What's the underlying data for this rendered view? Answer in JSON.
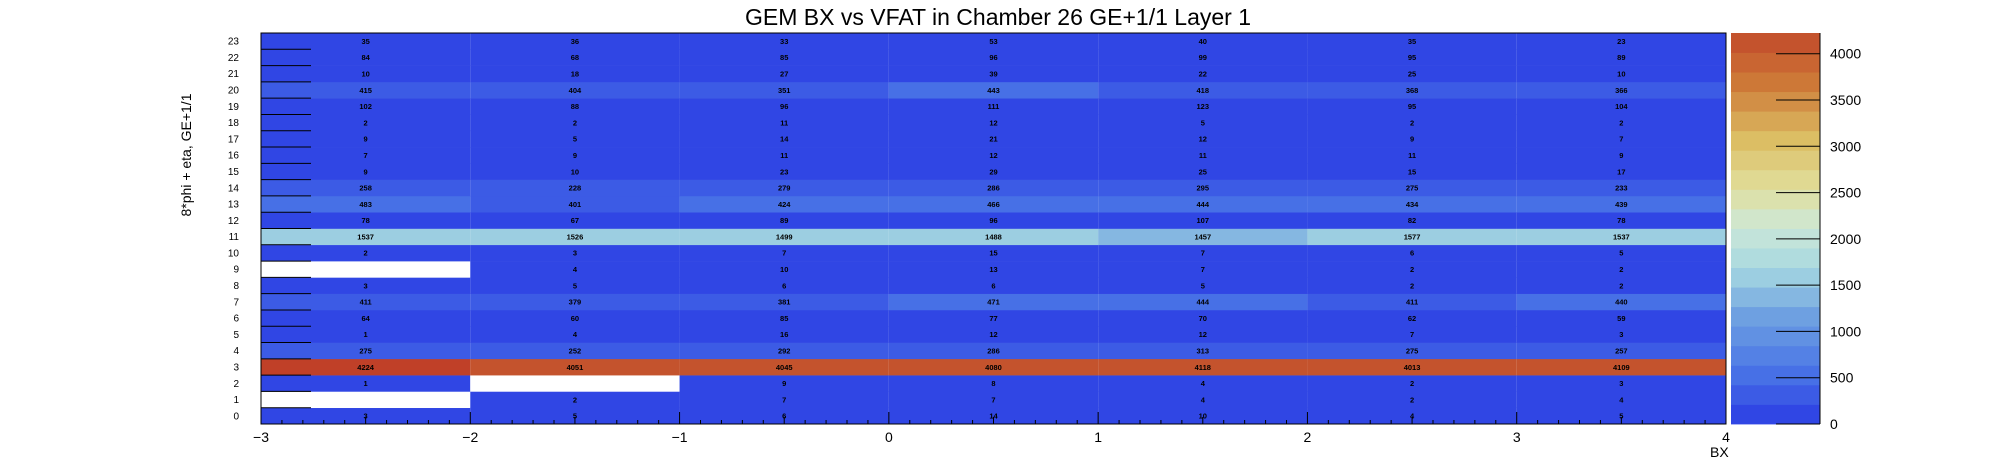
{
  "title": "GEM BX vs VFAT in Chamber 26 GE+1/1 Layer 1",
  "chart_data": {
    "type": "heatmap",
    "title": "GEM BX vs VFAT in Chamber 26 GE+1/1 Layer 1",
    "xlabel": "BX",
    "ylabel": "8*phi + eta, GE+1/1",
    "xlim": [
      -3,
      4
    ],
    "x_ticks": [
      "−3",
      "−2",
      "−1",
      "0",
      "1",
      "2",
      "3",
      "4"
    ],
    "x_bins": [
      -2.5,
      -1.5,
      -0.5,
      0.5,
      1.5,
      2.5,
      3.5
    ],
    "y_bins": [
      0,
      1,
      2,
      3,
      4,
      5,
      6,
      7,
      8,
      9,
      10,
      11,
      12,
      13,
      14,
      15,
      16,
      17,
      18,
      19,
      20,
      21,
      22,
      23
    ],
    "z_range": [
      0,
      4224
    ],
    "z_ticks": [
      "0",
      "500",
      "1000",
      "1500",
      "2000",
      "2500",
      "3000",
      "3500",
      "4000"
    ],
    "grid": false,
    "colorbar": "right",
    "values": [
      [
        3,
        5,
        6,
        14,
        10,
        4,
        5
      ],
      [
        null,
        2,
        7,
        7,
        4,
        2,
        4
      ],
      [
        1,
        null,
        9,
        8,
        4,
        2,
        3
      ],
      [
        4224,
        4051,
        4045,
        4080,
        4118,
        4013,
        4109
      ],
      [
        275,
        252,
        292,
        286,
        313,
        275,
        257
      ],
      [
        1,
        4,
        16,
        12,
        12,
        7,
        3
      ],
      [
        64,
        60,
        85,
        77,
        70,
        62,
        59
      ],
      [
        411,
        379,
        381,
        471,
        444,
        411,
        440
      ],
      [
        3,
        5,
        6,
        6,
        5,
        2,
        2
      ],
      [
        null,
        4,
        10,
        13,
        7,
        2,
        2
      ],
      [
        2,
        3,
        7,
        15,
        7,
        6,
        5
      ],
      [
        1537,
        1526,
        1499,
        1488,
        1457,
        1577,
        1537
      ],
      [
        78,
        67,
        89,
        96,
        107,
        82,
        78
      ],
      [
        483,
        401,
        424,
        466,
        444,
        434,
        439
      ],
      [
        258,
        228,
        279,
        286,
        295,
        275,
        233
      ],
      [
        9,
        10,
        23,
        29,
        25,
        15,
        17
      ],
      [
        7,
        9,
        11,
        12,
        11,
        11,
        9
      ],
      [
        9,
        5,
        14,
        21,
        12,
        9,
        7
      ],
      [
        2,
        2,
        11,
        12,
        5,
        2,
        2
      ],
      [
        102,
        88,
        96,
        111,
        123,
        95,
        104
      ],
      [
        415,
        404,
        351,
        443,
        418,
        368,
        366
      ],
      [
        10,
        18,
        27,
        39,
        22,
        25,
        10
      ],
      [
        84,
        68,
        85,
        96,
        99,
        95,
        89
      ],
      [
        35,
        36,
        33,
        53,
        40,
        35,
        23
      ]
    ]
  }
}
